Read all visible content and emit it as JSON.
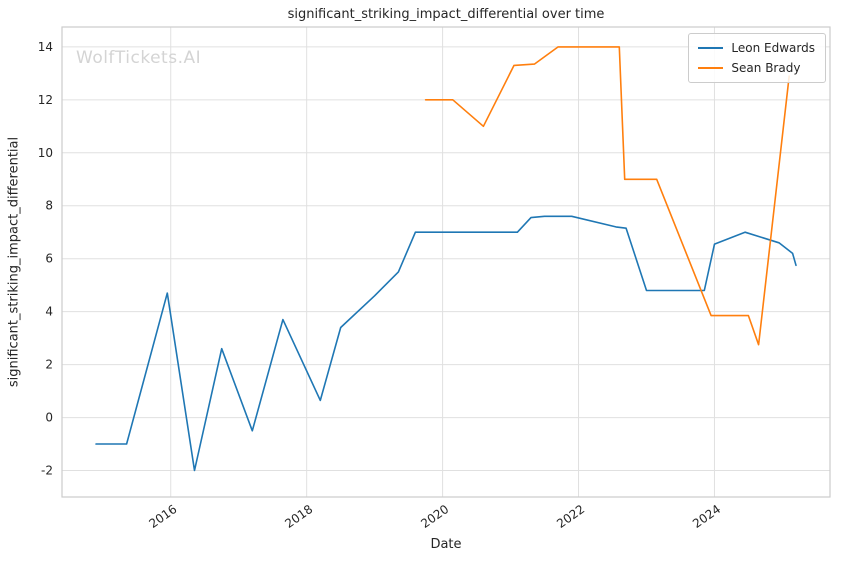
{
  "watermark": "WolfTickets.AI",
  "chart_data": {
    "type": "line",
    "title": "significant_striking_impact_differential over time",
    "xlabel": "Date",
    "ylabel": "significant_striking_impact_differential",
    "xlim": [
      2014.4,
      2025.7
    ],
    "ylim": [
      -3.0,
      14.75
    ],
    "x_ticks": [
      2016,
      2018,
      2020,
      2022,
      2024
    ],
    "y_ticks": [
      -2,
      0,
      2,
      4,
      6,
      8,
      10,
      12,
      14
    ],
    "grid": true,
    "legend_position": "upper right",
    "series": [
      {
        "name": "Leon Edwards",
        "color": "#1f77b4",
        "points": [
          [
            2014.9,
            -1.0
          ],
          [
            2015.35,
            -1.0
          ],
          [
            2015.95,
            4.7
          ],
          [
            2016.35,
            -2.0
          ],
          [
            2016.75,
            2.6
          ],
          [
            2017.2,
            -0.5
          ],
          [
            2017.65,
            3.7
          ],
          [
            2018.2,
            0.65
          ],
          [
            2018.5,
            3.4
          ],
          [
            2019.0,
            4.6
          ],
          [
            2019.35,
            5.5
          ],
          [
            2019.6,
            7.0
          ],
          [
            2021.1,
            7.0
          ],
          [
            2021.3,
            7.55
          ],
          [
            2021.5,
            7.6
          ],
          [
            2021.9,
            7.6
          ],
          [
            2022.55,
            7.2
          ],
          [
            2022.7,
            7.15
          ],
          [
            2023.0,
            4.8
          ],
          [
            2023.85,
            4.8
          ],
          [
            2024.0,
            6.55
          ],
          [
            2024.45,
            7.0
          ],
          [
            2024.95,
            6.6
          ],
          [
            2025.15,
            6.2
          ],
          [
            2025.2,
            5.75
          ]
        ]
      },
      {
        "name": "Sean Brady",
        "color": "#ff7f0e",
        "points": [
          [
            2019.75,
            12.0
          ],
          [
            2020.15,
            12.0
          ],
          [
            2020.6,
            11.0
          ],
          [
            2021.05,
            13.3
          ],
          [
            2021.35,
            13.35
          ],
          [
            2021.7,
            14.0
          ],
          [
            2022.6,
            14.0
          ],
          [
            2022.68,
            9.0
          ],
          [
            2023.15,
            9.0
          ],
          [
            2023.95,
            3.85
          ],
          [
            2024.5,
            3.85
          ],
          [
            2024.65,
            2.75
          ],
          [
            2025.1,
            12.9
          ]
        ]
      }
    ]
  }
}
